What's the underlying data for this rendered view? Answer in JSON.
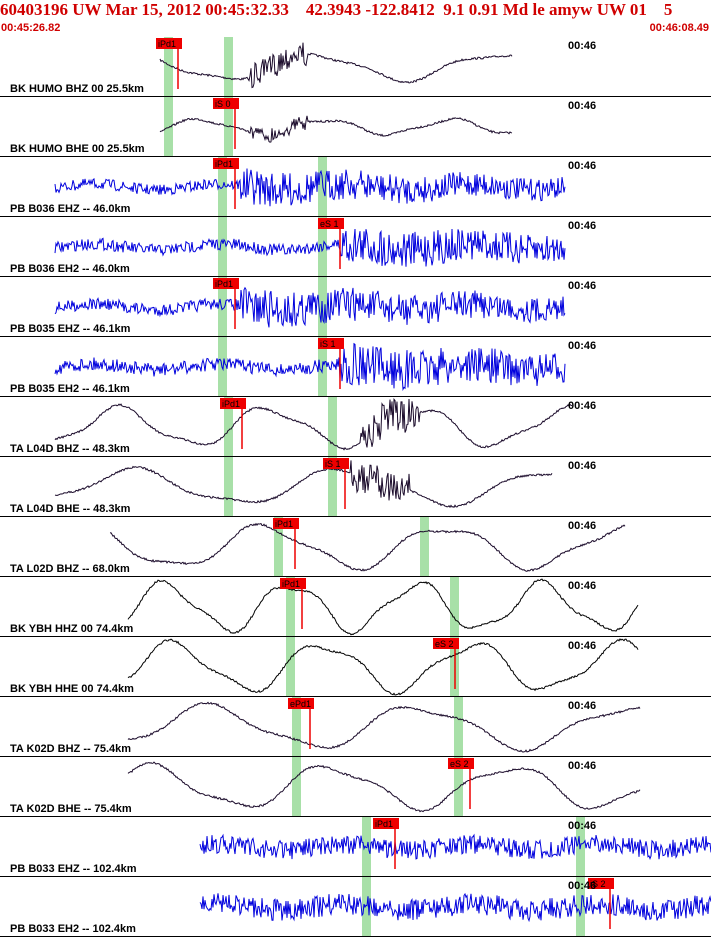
{
  "header": {
    "title": "60403196 UW Mar 15, 2012 00:45:32.33    42.3943 -122.8412  9.1 0.91 Md le amyw UW 01    5",
    "start_time": "00:45:26.82",
    "end_time": "00:46:08.49"
  },
  "colors": {
    "header_text": "#d00000",
    "pick_box": "#ee0000",
    "window": "#a8e0a8",
    "blue_trace": "#0000dd",
    "dark_trace": "#1a0a2a",
    "black_trace": "#000000"
  },
  "traces": [
    {
      "label": "BK HUMO BHZ 00 25.5km",
      "time": "00:46",
      "pick": "iPd1",
      "color": "dark"
    },
    {
      "label": "BK HUMO BHE 00 25.5km",
      "time": "00:46",
      "pick": "iS 0",
      "color": "dark"
    },
    {
      "label": "PB B036 EHZ -- 46.0km",
      "time": "00:46",
      "pick": "iPd1",
      "color": "blue"
    },
    {
      "label": "PB B036 EH2 -- 46.0km",
      "time": "00:46",
      "pick": "eS 1",
      "color": "blue"
    },
    {
      "label": "PB B035 EHZ -- 46.1km",
      "time": "00:46",
      "pick": "iPd1",
      "color": "blue"
    },
    {
      "label": "PB B035 EH2 -- 46.1km",
      "time": "00:46",
      "pick": "iS 1",
      "color": "blue"
    },
    {
      "label": "TA L04D BHZ -- 48.3km",
      "time": "00:46",
      "pick": "iPd1",
      "color": "dark"
    },
    {
      "label": "TA L04D BHE -- 48.3km",
      "time": "00:46",
      "pick": "iS 1",
      "color": "dark"
    },
    {
      "label": "TA L02D BHZ -- 68.0km",
      "time": "00:46",
      "pick": "iPd1",
      "color": "dark"
    },
    {
      "label": "BK YBH HHZ 00 74.4km",
      "time": "00:46",
      "pick": "iPd1",
      "color": "black"
    },
    {
      "label": "BK YBH HHE 00 74.4km",
      "time": "00:46",
      "pick": "eS 2",
      "color": "black"
    },
    {
      "label": "TA K02D BHZ -- 75.4km",
      "time": "00:46",
      "pick": "ePd1",
      "color": "dark"
    },
    {
      "label": "TA K02D BHE -- 75.4km",
      "time": "00:46",
      "pick": "eS 2",
      "color": "dark"
    },
    {
      "label": "PB B033 EHZ -- 102.4km",
      "time": "00:46",
      "pick": "iPd1",
      "color": "blue"
    },
    {
      "label": "PB B033 EH2 -- 102.4km",
      "time": "00:46",
      "pick": "iS 2",
      "color": "blue"
    }
  ]
}
